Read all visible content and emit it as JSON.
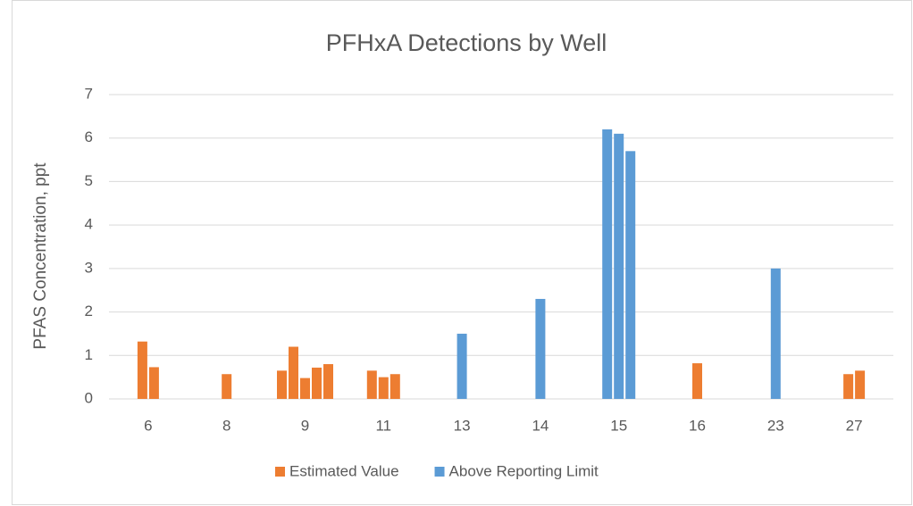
{
  "chart_data": {
    "type": "bar",
    "title": "PFHxA Detections by Well",
    "ylabel": "PFAS Concentration, ppt",
    "categories": [
      "6",
      "8",
      "9",
      "11",
      "13",
      "14",
      "15",
      "16",
      "23",
      "27"
    ],
    "series": [
      {
        "name": "Estimated Value",
        "color": "#ed7d31",
        "values": [
          [
            1.32,
            0.73
          ],
          [
            0.57
          ],
          [
            0.65,
            1.2,
            0.48,
            0.72,
            0.8
          ],
          [
            0.65,
            0.5,
            0.57
          ],
          [],
          [],
          [],
          [
            0.82
          ],
          [],
          [
            0.57,
            0.65
          ]
        ]
      },
      {
        "name": "Above Reporting Limit",
        "color": "#5b9bd5",
        "values": [
          [],
          [],
          [],
          [],
          [
            1.5
          ],
          [
            2.3
          ],
          [
            6.2,
            6.1,
            5.7
          ],
          [],
          [
            3.0
          ],
          []
        ]
      }
    ],
    "ylim": [
      0,
      7
    ],
    "yticks": [
      0,
      1,
      2,
      3,
      4,
      5,
      6,
      7
    ],
    "grid": true,
    "legend": "bottom"
  }
}
